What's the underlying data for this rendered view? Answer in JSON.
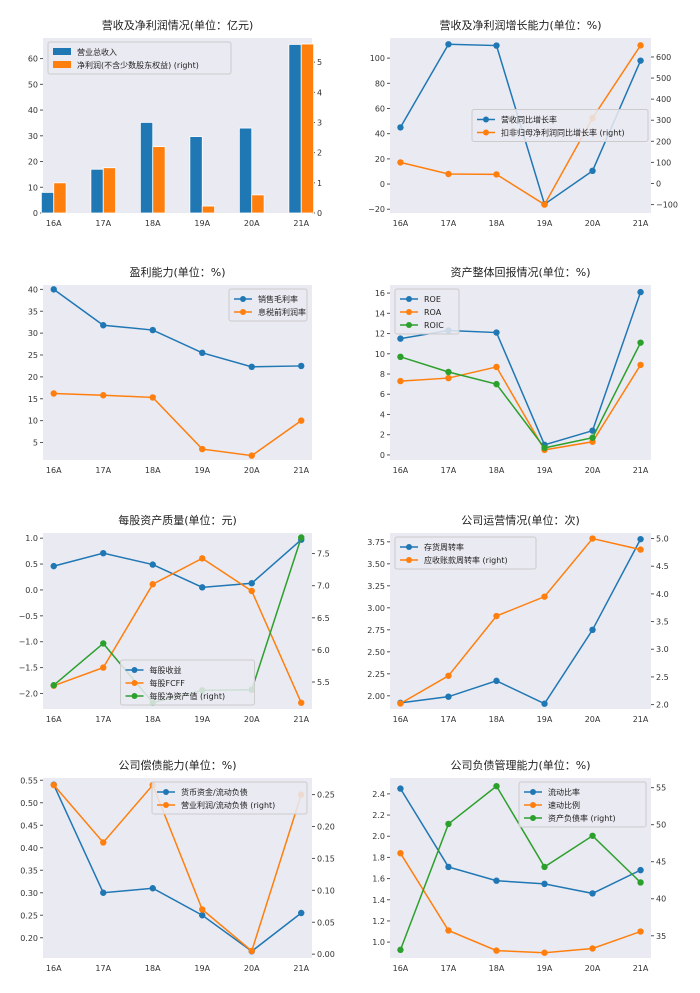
{
  "colors": [
    "#1f77b4",
    "#ff7f0e",
    "#2ca02c"
  ],
  "background": "#eaeaf2",
  "chart_data": [
    {
      "type": "bar",
      "title": "营收及净利润情况(单位：亿元)",
      "categories": [
        "16A",
        "17A",
        "18A",
        "19A",
        "20A",
        "21A"
      ],
      "legend": "upper-left",
      "ylim": [
        0,
        68
      ],
      "yticks": [
        "0",
        "10",
        "20",
        "30",
        "40",
        "50",
        "60"
      ],
      "ytick_values": [
        0,
        10,
        20,
        30,
        40,
        50,
        60
      ],
      "ylim_right": [
        0,
        5.8
      ],
      "yticks_right": [
        "0",
        "1",
        "2",
        "3",
        "4",
        "5"
      ],
      "ytick_values_right": [
        0,
        1,
        2,
        3,
        4,
        5
      ],
      "series": [
        {
          "name": "营业总收入",
          "axis": "left",
          "values": [
            8,
            17,
            35.2,
            29.7,
            33,
            65.5
          ]
        },
        {
          "name": "净利润(不含少数股东权益) (right)",
          "axis": "right",
          "values": [
            1.0,
            1.5,
            2.2,
            0.23,
            0.6,
            5.6
          ]
        }
      ]
    },
    {
      "type": "line",
      "title": "营收及净利润增长能力(单位：%)",
      "categories": [
        "16A",
        "17A",
        "18A",
        "19A",
        "20A",
        "21A"
      ],
      "legend": "center-right",
      "ylim": [
        -23,
        116
      ],
      "yticks": [
        "−20",
        "0",
        "20",
        "40",
        "60",
        "80",
        "100"
      ],
      "ytick_values": [
        -20,
        0,
        20,
        40,
        60,
        80,
        100
      ],
      "ylim_right": [
        -140,
        690
      ],
      "yticks_right": [
        "−100",
        "0",
        "100",
        "200",
        "300",
        "400",
        "500",
        "600"
      ],
      "ytick_values_right": [
        -100,
        0,
        100,
        200,
        300,
        400,
        500,
        600
      ],
      "series": [
        {
          "name": "营收同比增长率",
          "axis": "left",
          "values": [
            45,
            111,
            110,
            -16,
            10.5,
            98
          ]
        },
        {
          "name": "扣非归母净利润同比增长率 (right)",
          "axis": "right",
          "values": [
            100,
            45,
            43,
            -100,
            310,
            655
          ]
        }
      ]
    },
    {
      "type": "line",
      "title": "盈利能力(单位：%)",
      "categories": [
        "16A",
        "17A",
        "18A",
        "19A",
        "20A",
        "21A"
      ],
      "legend": "upper-right",
      "ylim": [
        1,
        41
      ],
      "yticks": [
        "5",
        "10",
        "15",
        "20",
        "25",
        "30",
        "35",
        "40"
      ],
      "ytick_values": [
        5,
        10,
        15,
        20,
        25,
        30,
        35,
        40
      ],
      "series": [
        {
          "name": "销售毛利率",
          "axis": "left",
          "values": [
            40,
            31.8,
            30.7,
            25.5,
            22.3,
            22.5
          ]
        },
        {
          "name": "息税前利润率",
          "axis": "left",
          "values": [
            16.2,
            15.8,
            15.3,
            3.5,
            2,
            10
          ]
        }
      ]
    },
    {
      "type": "line",
      "title": "资产整体回报情况(单位：%)",
      "categories": [
        "16A",
        "17A",
        "18A",
        "19A",
        "20A",
        "21A"
      ],
      "legend": "upper-left",
      "ylim": [
        -0.5,
        16.8
      ],
      "yticks": [
        "0",
        "2",
        "4",
        "6",
        "8",
        "10",
        "12",
        "14",
        "16"
      ],
      "ytick_values": [
        0,
        2,
        4,
        6,
        8,
        10,
        12,
        14,
        16
      ],
      "series": [
        {
          "name": "ROE",
          "axis": "left",
          "values": [
            11.5,
            12.3,
            12.1,
            1,
            2.4,
            16.1
          ]
        },
        {
          "name": "ROA",
          "axis": "left",
          "values": [
            7.3,
            7.6,
            8.7,
            0.5,
            1.3,
            8.9
          ]
        },
        {
          "name": "ROIC",
          "axis": "left",
          "values": [
            9.7,
            8.2,
            7,
            0.7,
            1.7,
            11.1
          ]
        }
      ]
    },
    {
      "type": "line",
      "title": "每股资产质量(单位：元)",
      "categories": [
        "16A",
        "17A",
        "18A",
        "19A",
        "20A",
        "21A"
      ],
      "legend": "lower-center",
      "ylim": [
        -2.3,
        1.1
      ],
      "yticks": [
        "−2.0",
        "−1.5",
        "−1.0",
        "−0.5",
        "0.0",
        "0.5",
        "1.0"
      ],
      "ytick_values": [
        -2,
        -1.5,
        -1,
        -0.5,
        0,
        0.5,
        1
      ],
      "ylim_right": [
        5.08,
        7.82
      ],
      "yticks_right": [
        "5.5",
        "6.0",
        "6.5",
        "7.0",
        "7.5"
      ],
      "ytick_values_right": [
        5.5,
        6,
        6.5,
        7,
        7.5
      ],
      "series": [
        {
          "name": "每股收益",
          "axis": "left",
          "values": [
            0.46,
            0.71,
            0.49,
            0.05,
            0.13,
            0.97
          ]
        },
        {
          "name": "每股FCFF",
          "axis": "left",
          "values": [
            -1.85,
            -1.5,
            0.11,
            0.61,
            -0.02,
            -2.18
          ]
        },
        {
          "name": "每股净资产值 (right)",
          "axis": "right",
          "values": [
            5.45,
            6.1,
            5.18,
            5.37,
            5.38,
            7.75
          ]
        }
      ]
    },
    {
      "type": "line",
      "title": "公司运营情况(单位：次)",
      "categories": [
        "16A",
        "17A",
        "18A",
        "19A",
        "20A",
        "21A"
      ],
      "legend": "upper-left",
      "ylim": [
        1.85,
        3.85
      ],
      "yticks": [
        "2.00",
        "2.25",
        "2.50",
        "2.75",
        "3.00",
        "3.25",
        "3.50",
        "3.75"
      ],
      "ytick_values": [
        2,
        2.25,
        2.5,
        2.75,
        3,
        3.25,
        3.5,
        3.75
      ],
      "ylim_right": [
        1.92,
        5.1
      ],
      "yticks_right": [
        "2.0",
        "2.5",
        "3.0",
        "3.5",
        "4.0",
        "4.5",
        "5.0"
      ],
      "ytick_values_right": [
        2,
        2.5,
        3,
        3.5,
        4,
        4.5,
        5
      ],
      "series": [
        {
          "name": "存货周转率",
          "axis": "left",
          "values": [
            1.92,
            1.99,
            2.17,
            1.91,
            2.75,
            3.78
          ]
        },
        {
          "name": "应收账款周转率 (right)",
          "axis": "right",
          "values": [
            2.02,
            2.52,
            3.6,
            3.95,
            5.0,
            4.8
          ]
        }
      ]
    },
    {
      "type": "line",
      "title": "公司偿债能力(单位：%)",
      "categories": [
        "16A",
        "17A",
        "18A",
        "19A",
        "20A",
        "21A"
      ],
      "legend": "upper-right",
      "ylim": [
        0.155,
        0.555
      ],
      "yticks": [
        "0.20",
        "0.25",
        "0.30",
        "0.35",
        "0.40",
        "0.45",
        "0.50",
        "0.55"
      ],
      "ytick_values": [
        0.2,
        0.25,
        0.3,
        0.35,
        0.4,
        0.45,
        0.5,
        0.55
      ],
      "ylim_right": [
        -0.006,
        0.276
      ],
      "yticks_right": [
        "0.00",
        "0.05",
        "0.10",
        "0.15",
        "0.20",
        "0.25"
      ],
      "ytick_values_right": [
        0,
        0.05,
        0.1,
        0.15,
        0.2,
        0.25
      ],
      "series": [
        {
          "name": "货币资金/流动负债",
          "axis": "left",
          "values": [
            0.54,
            0.3,
            0.31,
            0.25,
            0.17,
            0.255
          ]
        },
        {
          "name": "营业利润/流动负债 (right)",
          "axis": "right",
          "values": [
            0.265,
            0.175,
            0.265,
            0.07,
            0.005,
            0.25
          ]
        }
      ]
    },
    {
      "type": "line",
      "title": "公司负债管理能力(单位：%)",
      "categories": [
        "16A",
        "17A",
        "18A",
        "19A",
        "20A",
        "21A"
      ],
      "legend": "upper-right",
      "ylim": [
        0.85,
        2.55
      ],
      "yticks": [
        "1.0",
        "1.2",
        "1.4",
        "1.6",
        "1.8",
        "2.0",
        "2.2",
        "2.4"
      ],
      "ytick_values": [
        1,
        1.2,
        1.4,
        1.6,
        1.8,
        2,
        2.2,
        2.4
      ],
      "ylim_right": [
        32,
        56.3
      ],
      "yticks_right": [
        "35",
        "40",
        "45",
        "50",
        "55"
      ],
      "ytick_values_right": [
        35,
        40,
        45,
        50,
        55
      ],
      "series": [
        {
          "name": "流动比率",
          "axis": "left",
          "values": [
            2.45,
            1.71,
            1.58,
            1.55,
            1.46,
            1.68
          ]
        },
        {
          "name": "速动比例",
          "axis": "left",
          "values": [
            1.84,
            1.11,
            0.92,
            0.9,
            0.94,
            1.1
          ]
        },
        {
          "name": "资产负债率 (right)",
          "axis": "right",
          "values": [
            33.1,
            50.1,
            55.2,
            44.3,
            48.5,
            42.2
          ]
        }
      ]
    }
  ]
}
